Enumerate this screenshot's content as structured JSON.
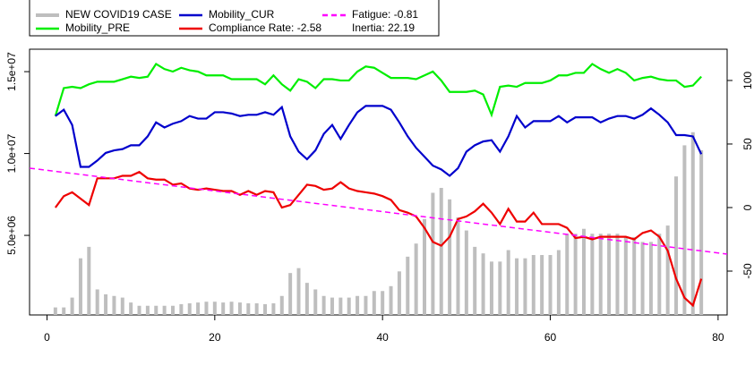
{
  "chart_data": {
    "type": "combo",
    "x": [
      1,
      2,
      3,
      4,
      5,
      6,
      7,
      8,
      9,
      10,
      11,
      12,
      13,
      14,
      15,
      16,
      17,
      18,
      19,
      20,
      21,
      22,
      23,
      24,
      25,
      26,
      27,
      28,
      29,
      30,
      31,
      32,
      33,
      34,
      35,
      36,
      37,
      38,
      39,
      40,
      41,
      42,
      43,
      44,
      45,
      46,
      47,
      48,
      49,
      50,
      51,
      52,
      53,
      54,
      55,
      56,
      57,
      58,
      59,
      60,
      61,
      62,
      63,
      64,
      65,
      66,
      67,
      68,
      69,
      70,
      71,
      72,
      73,
      74,
      75,
      76,
      77,
      78
    ],
    "xlim": [
      -2.08,
      81.08
    ],
    "xticks": [
      0,
      20,
      40,
      60,
      80
    ],
    "ylim": [
      140000,
      16370000
    ],
    "yticks": [
      {
        "value": 5000000,
        "label": "5.0e+06"
      },
      {
        "value": 10000000,
        "label": "1.0e+07"
      },
      {
        "value": 15000000,
        "label": "1.5e+07"
      }
    ],
    "y2lim": [
      -84.5,
      124.6
    ],
    "y2ticks": [
      -50,
      0,
      50,
      100
    ],
    "series": [
      {
        "name": "NEW COVID19 CASE",
        "type": "bar",
        "axis": "y",
        "color": "#bebebe",
        "values": [
          600000,
          600000,
          1200000,
          3600000,
          4300000,
          1700000,
          1400000,
          1300000,
          1200000,
          900000,
          700000,
          700000,
          700000,
          700000,
          700000,
          800000,
          850000,
          900000,
          950000,
          950000,
          900000,
          950000,
          900000,
          850000,
          850000,
          800000,
          850000,
          1300000,
          2700000,
          3000000,
          2100000,
          1700000,
          1300000,
          1200000,
          1200000,
          1200000,
          1300000,
          1300000,
          1600000,
          1600000,
          1900000,
          2800000,
          3700000,
          4500000,
          6000000,
          7600000,
          7900000,
          7200000,
          6100000,
          5300000,
          4300000,
          3900000,
          3400000,
          3400000,
          4100000,
          3600000,
          3600000,
          3800000,
          3800000,
          3800000,
          4100000,
          5100000,
          5100000,
          5400000,
          5100000,
          5100000,
          5100000,
          5100000,
          4900000,
          4900000,
          4600000,
          4600000,
          5100000,
          5600000,
          8600000,
          10500000,
          11300000,
          10200000
        ]
      },
      {
        "name": "Mobility_PRE",
        "type": "line",
        "axis": "y2",
        "color": "#00ee00",
        "values": [
          72,
          94,
          95,
          94,
          97,
          99,
          99,
          99,
          101,
          103,
          102,
          103,
          113,
          109,
          107,
          110,
          108,
          107,
          104,
          104,
          104,
          101,
          101,
          101,
          101,
          97,
          104,
          97,
          92,
          101,
          99,
          94,
          101,
          101,
          100,
          100,
          107,
          111,
          110,
          106,
          102,
          102,
          102,
          101,
          104,
          107,
          100,
          91,
          91,
          91,
          92,
          89,
          73,
          95,
          96,
          95,
          98,
          98,
          98,
          100,
          104,
          104,
          106,
          106,
          113,
          109,
          106,
          109,
          106,
          100,
          102,
          103,
          101,
          100,
          100,
          95,
          96,
          103
        ]
      },
      {
        "name": "Mobility_CUR",
        "type": "line",
        "axis": "y2",
        "color": "#0000cc",
        "values": [
          72,
          77,
          65,
          32,
          32,
          37,
          43,
          45,
          46,
          49,
          49,
          56,
          67,
          63,
          66,
          68,
          72,
          70,
          70,
          75,
          75,
          74,
          72,
          73,
          73,
          75,
          73,
          79,
          56,
          44,
          38,
          45,
          58,
          65,
          54,
          65,
          75,
          80,
          80,
          80,
          77,
          67,
          56,
          47,
          40,
          33,
          30,
          25,
          31,
          44,
          49,
          52,
          53,
          44,
          56,
          72,
          63,
          68,
          68,
          68,
          72,
          67,
          71,
          71,
          71,
          67,
          70,
          72,
          72,
          70,
          73,
          78,
          73,
          67,
          57,
          57,
          56,
          42
        ]
      },
      {
        "name": "Compliance Rate: -2.58",
        "type": "line",
        "axis": "y2",
        "color": "#ee0000",
        "values": [
          0,
          9,
          12,
          7,
          2,
          23,
          23,
          23,
          25,
          25,
          28,
          23,
          22,
          22,
          18,
          19,
          15,
          14,
          15,
          14,
          13,
          13,
          10,
          13,
          10,
          13,
          12,
          0,
          2,
          10,
          18,
          17,
          14,
          15,
          20,
          15,
          13,
          12,
          11,
          9,
          6,
          -2,
          -4,
          -7,
          -16,
          -27,
          -30,
          -23,
          -9,
          -7,
          -3,
          3,
          -4,
          -13,
          -1,
          -11,
          -11,
          -4,
          -13,
          -13,
          -13,
          -16,
          -24,
          -23,
          -25,
          -23,
          -23,
          -23,
          -23,
          -25,
          -20,
          -18,
          -23,
          -34,
          -56,
          -71,
          -77,
          -56
        ]
      },
      {
        "name": "Fatigue: -0.81",
        "type": "dashed",
        "axis": "y2",
        "color": "#ff00ff",
        "x": [
          -2.08,
          81.08
        ],
        "values": [
          31,
          -36.6
        ]
      }
    ],
    "legend_notes": [
      "Inertia: 22.19"
    ]
  }
}
